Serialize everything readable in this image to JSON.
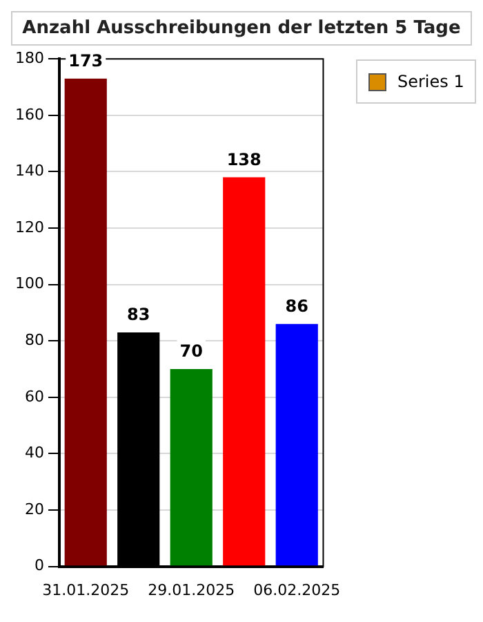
{
  "chart_data": {
    "type": "bar",
    "title": "Anzahl Ausschreibungen der letzten 5 Tage",
    "categories": [
      "31.01.2025",
      null,
      "29.01.2025",
      null,
      "06.02.2025"
    ],
    "series": [
      {
        "name": "Series 1",
        "color": "#d98c00",
        "colors": [
          "#800000",
          "#000000",
          "#008000",
          "#ff0000",
          "#0000ff"
        ],
        "values": [
          173,
          83,
          70,
          138,
          86
        ]
      }
    ],
    "ylim": [
      0,
      180
    ],
    "yticks": [
      0,
      20,
      40,
      60,
      80,
      100,
      120,
      140,
      160,
      180
    ],
    "grid": "y",
    "legend": "top right",
    "data_labels": true
  }
}
